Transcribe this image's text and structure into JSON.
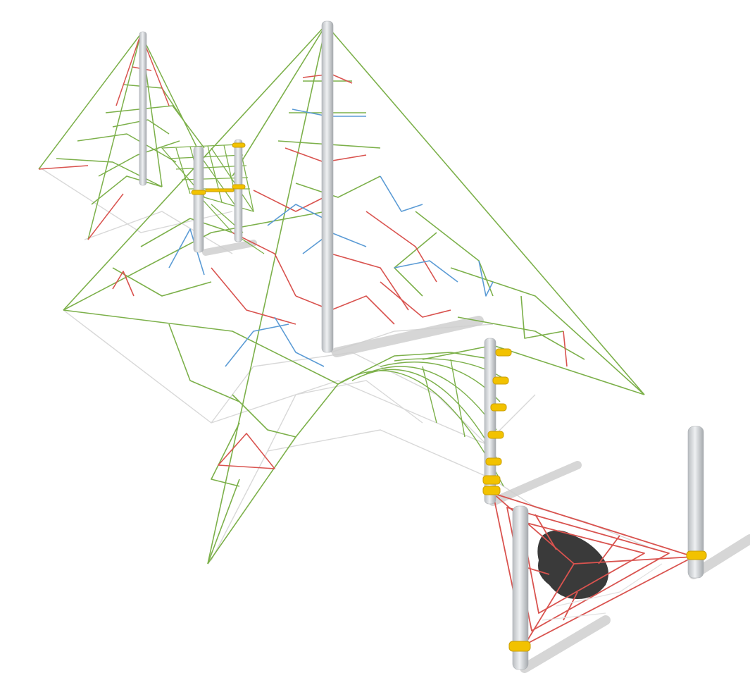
{
  "scene": {
    "subject": "rope-climbing-play-structure",
    "colors": {
      "background": "#ffffff",
      "rope_green": "#7cb04a",
      "rope_red": "#d9534f",
      "rope_blue": "#5b9bd5",
      "pole": "#d6d9dc",
      "pole_edge": "#a9adb1",
      "clamp": "#f2c200",
      "shadow": "#dcdcdc",
      "hammock": "#3a3a3a"
    }
  }
}
